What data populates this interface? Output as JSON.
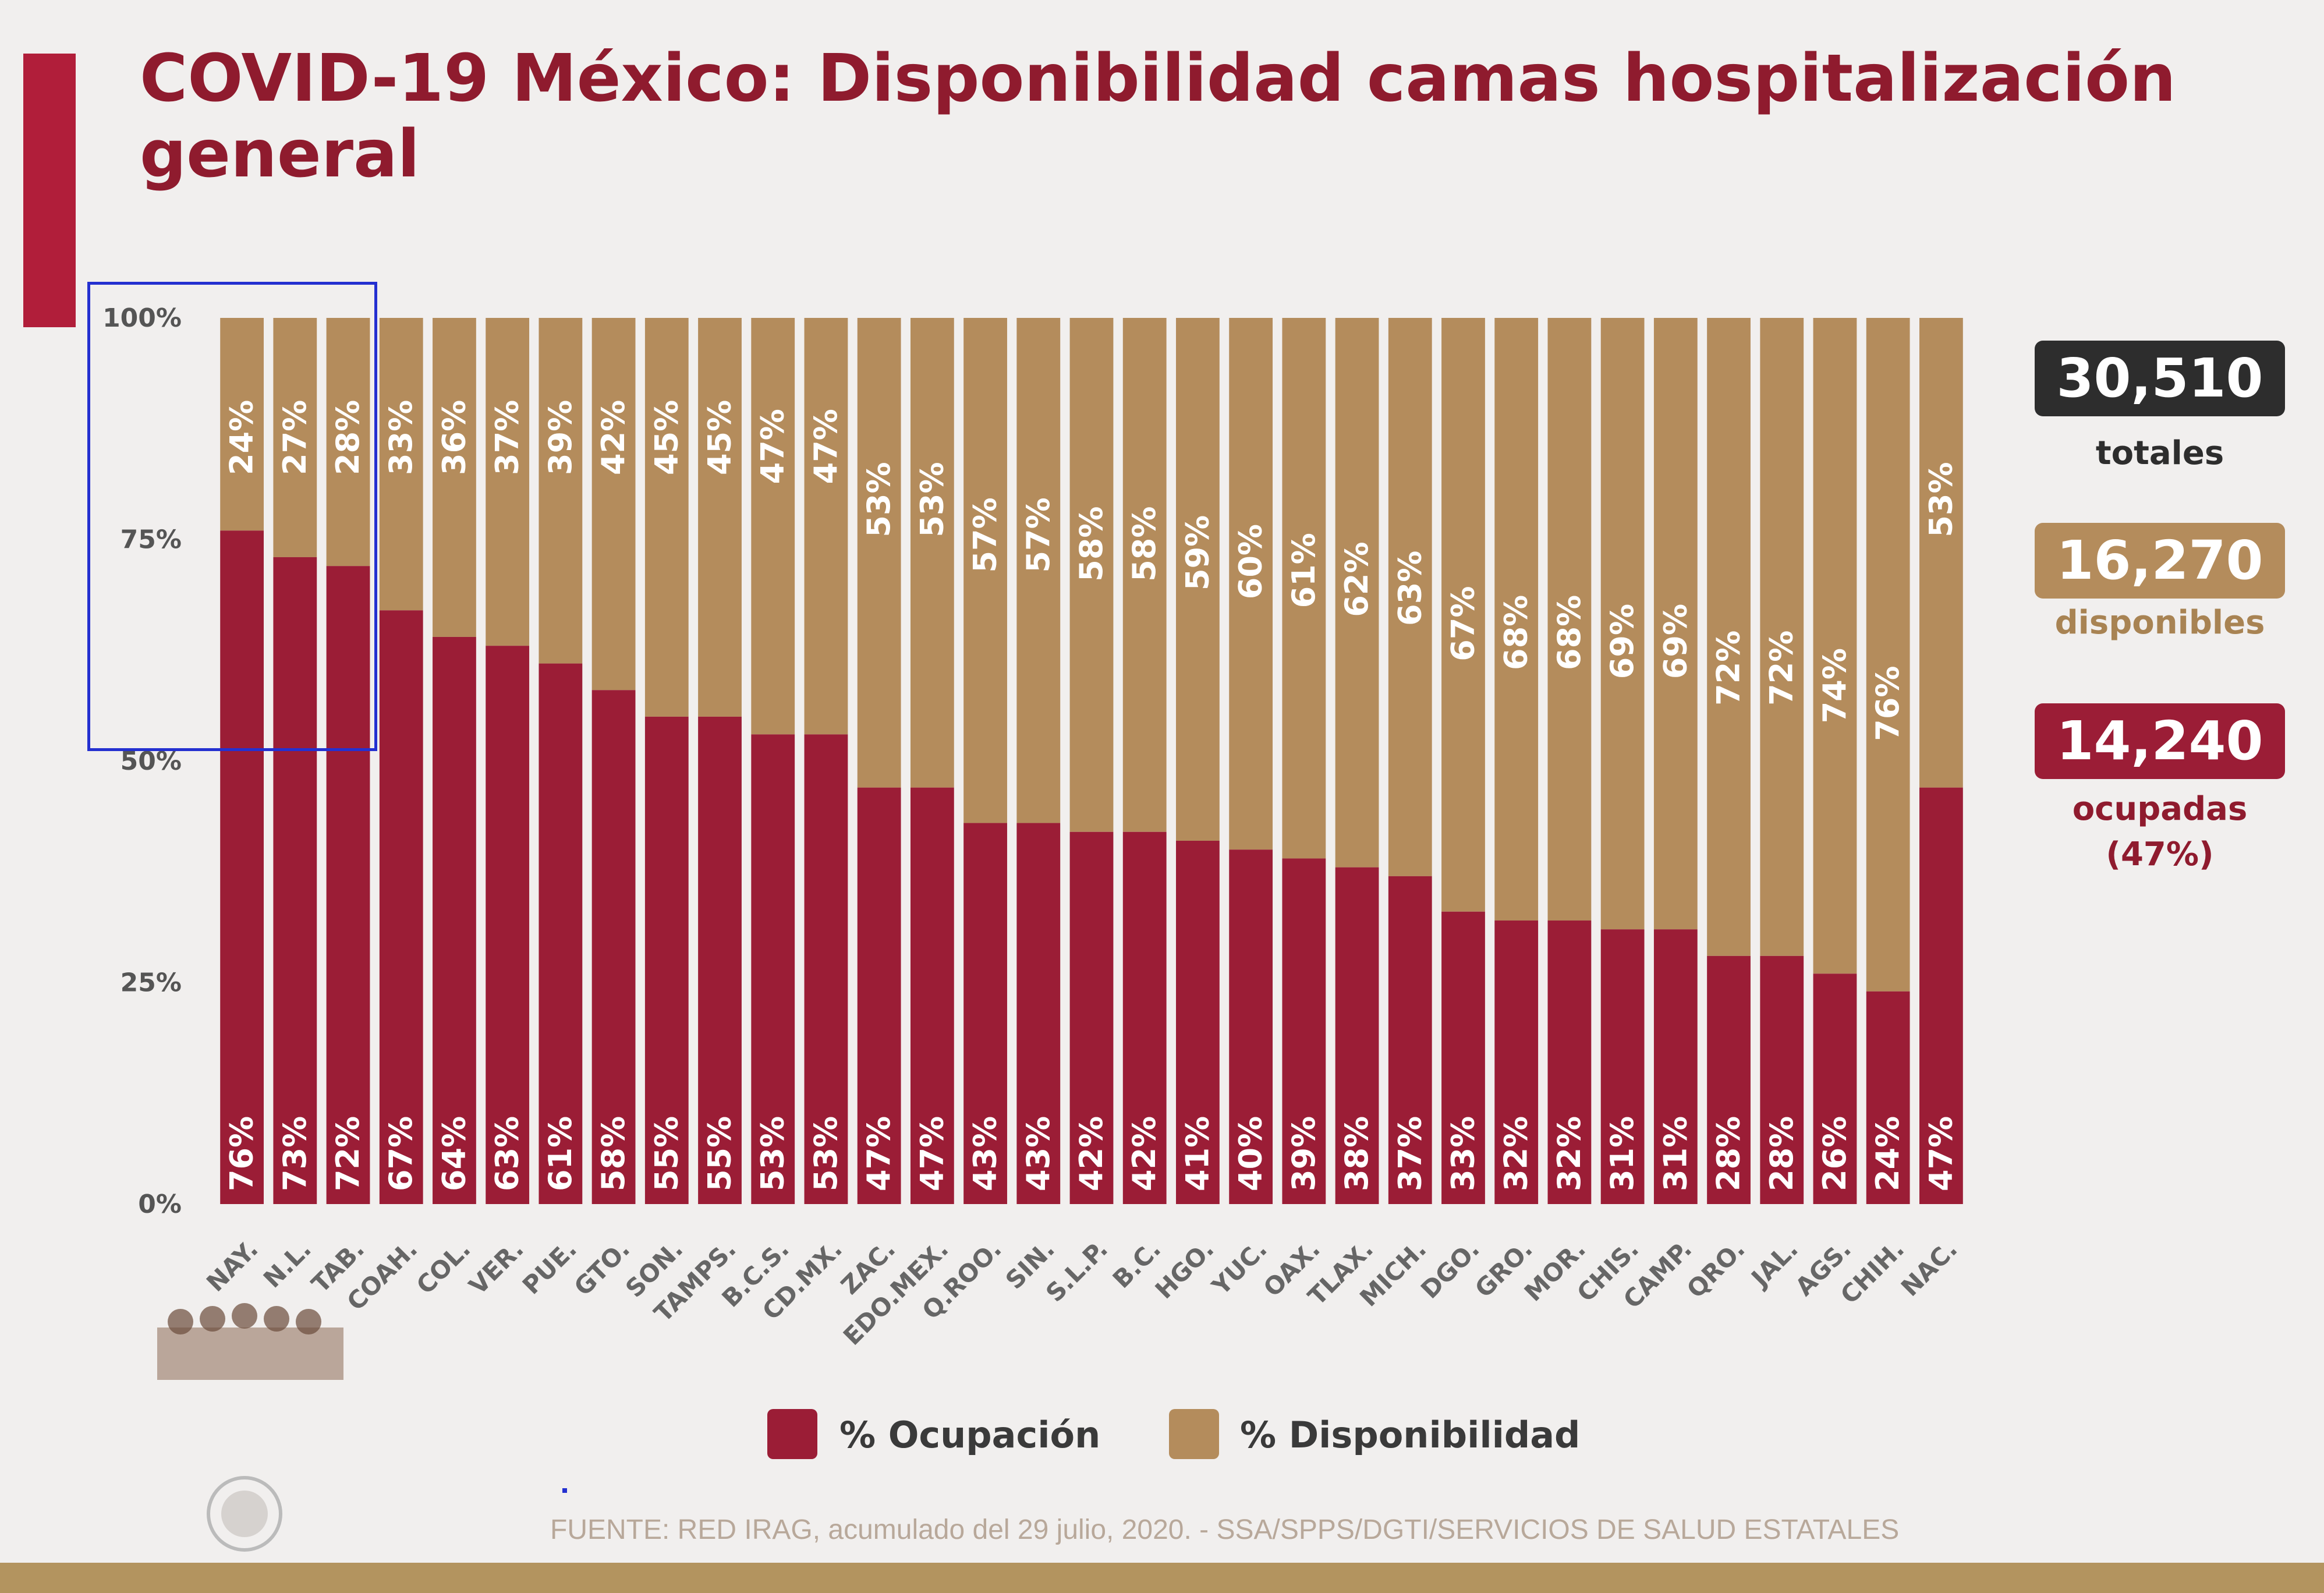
{
  "title": "COVID-19 México: Disponibilidad camas hospitalización general",
  "chart_data": {
    "type": "bar",
    "stacked": true,
    "orientation": "vertical",
    "categories": [
      "NAY.",
      "N.L.",
      "TAB.",
      "COAH.",
      "COL.",
      "VER.",
      "PUE.",
      "GTO.",
      "SON.",
      "TAMPS.",
      "B.C.S.",
      "CD.MX.",
      "ZAC.",
      "EDO.MEX.",
      "Q.ROO.",
      "SIN.",
      "S.L.P.",
      "B.C.",
      "HGO.",
      "YUC.",
      "OAX.",
      "TLAX.",
      "MICH.",
      "DGO.",
      "GRO.",
      "MOR.",
      "CHIS.",
      "CAMP.",
      "QRO.",
      "JAL.",
      "AGS.",
      "CHIH.",
      "NAC."
    ],
    "series": [
      {
        "name": "% Ocupación",
        "color": "#9b1d36",
        "values": [
          76,
          73,
          72,
          67,
          64,
          63,
          61,
          58,
          55,
          55,
          53,
          53,
          47,
          47,
          43,
          43,
          42,
          42,
          41,
          40,
          39,
          38,
          37,
          33,
          32,
          32,
          31,
          31,
          28,
          28,
          26,
          24,
          47
        ]
      },
      {
        "name": "% Disponibilidad",
        "color": "#b48c5c",
        "values": [
          24,
          27,
          28,
          33,
          36,
          37,
          39,
          42,
          45,
          45,
          47,
          47,
          53,
          53,
          57,
          57,
          58,
          58,
          59,
          60,
          61,
          62,
          63,
          67,
          68,
          68,
          69,
          69,
          72,
          72,
          74,
          76,
          53
        ]
      }
    ],
    "value_suffix": "%",
    "ylim": [
      0,
      100
    ],
    "y_ticks": [
      "0%",
      "25%",
      "50%",
      "75%",
      "100%"
    ],
    "y_tick_values": [
      0,
      25,
      50,
      75,
      100
    ],
    "grid": false,
    "legend_position": "bottom"
  },
  "stats": {
    "total_value": "30,510",
    "total_label": "totales",
    "available_value": "16,270",
    "available_label": "disponibles",
    "occupied_value": "14,240",
    "occupied_label": "ocupadas",
    "occupied_percent": "(47%)",
    "colors": {
      "total": "#2d2d2d",
      "available": "#b48c5c",
      "occupied": "#9b1d36"
    }
  },
  "legend": {
    "occupation_label": "% Ocupación",
    "availability_label": "% Disponibilidad"
  },
  "source": "FUENTE: RED IRAG, acumulado del 29 julio, 2020. -  SSA/SPPS/DGTI/SERVICIOS DE SALUD ESTATALES"
}
